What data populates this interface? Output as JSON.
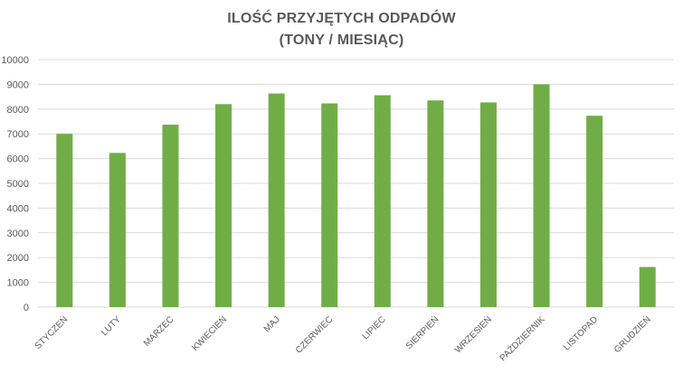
{
  "chart_data": {
    "type": "bar",
    "title": "ILOŚĆ PRZYJĘTYCH ODPADÓW",
    "subtitle": "(TONY / MIESIĄC)",
    "xlabel": "",
    "ylabel": "",
    "categories": [
      "STYCZEŃ",
      "LUTY",
      "MARZEC",
      "KWIECIEŃ",
      "MAJ",
      "CZERWIEC",
      "LIPIEC",
      "SIERPIEŃ",
      "WRZESIEŃ",
      "PAŹDZIERNIK",
      "LISTOPAD",
      "GRUDZIEŃ"
    ],
    "values": [
      7000,
      6230,
      7370,
      8200,
      8630,
      8230,
      8560,
      8350,
      8270,
      9000,
      7730,
      1620
    ],
    "ylim": [
      0,
      10000
    ],
    "yticks": [
      0,
      1000,
      2000,
      3000,
      4000,
      5000,
      6000,
      7000,
      8000,
      9000,
      10000
    ],
    "grid": true,
    "legend": "none",
    "bar_color": "#70AD47",
    "grid_color": "#D9D9D9"
  }
}
